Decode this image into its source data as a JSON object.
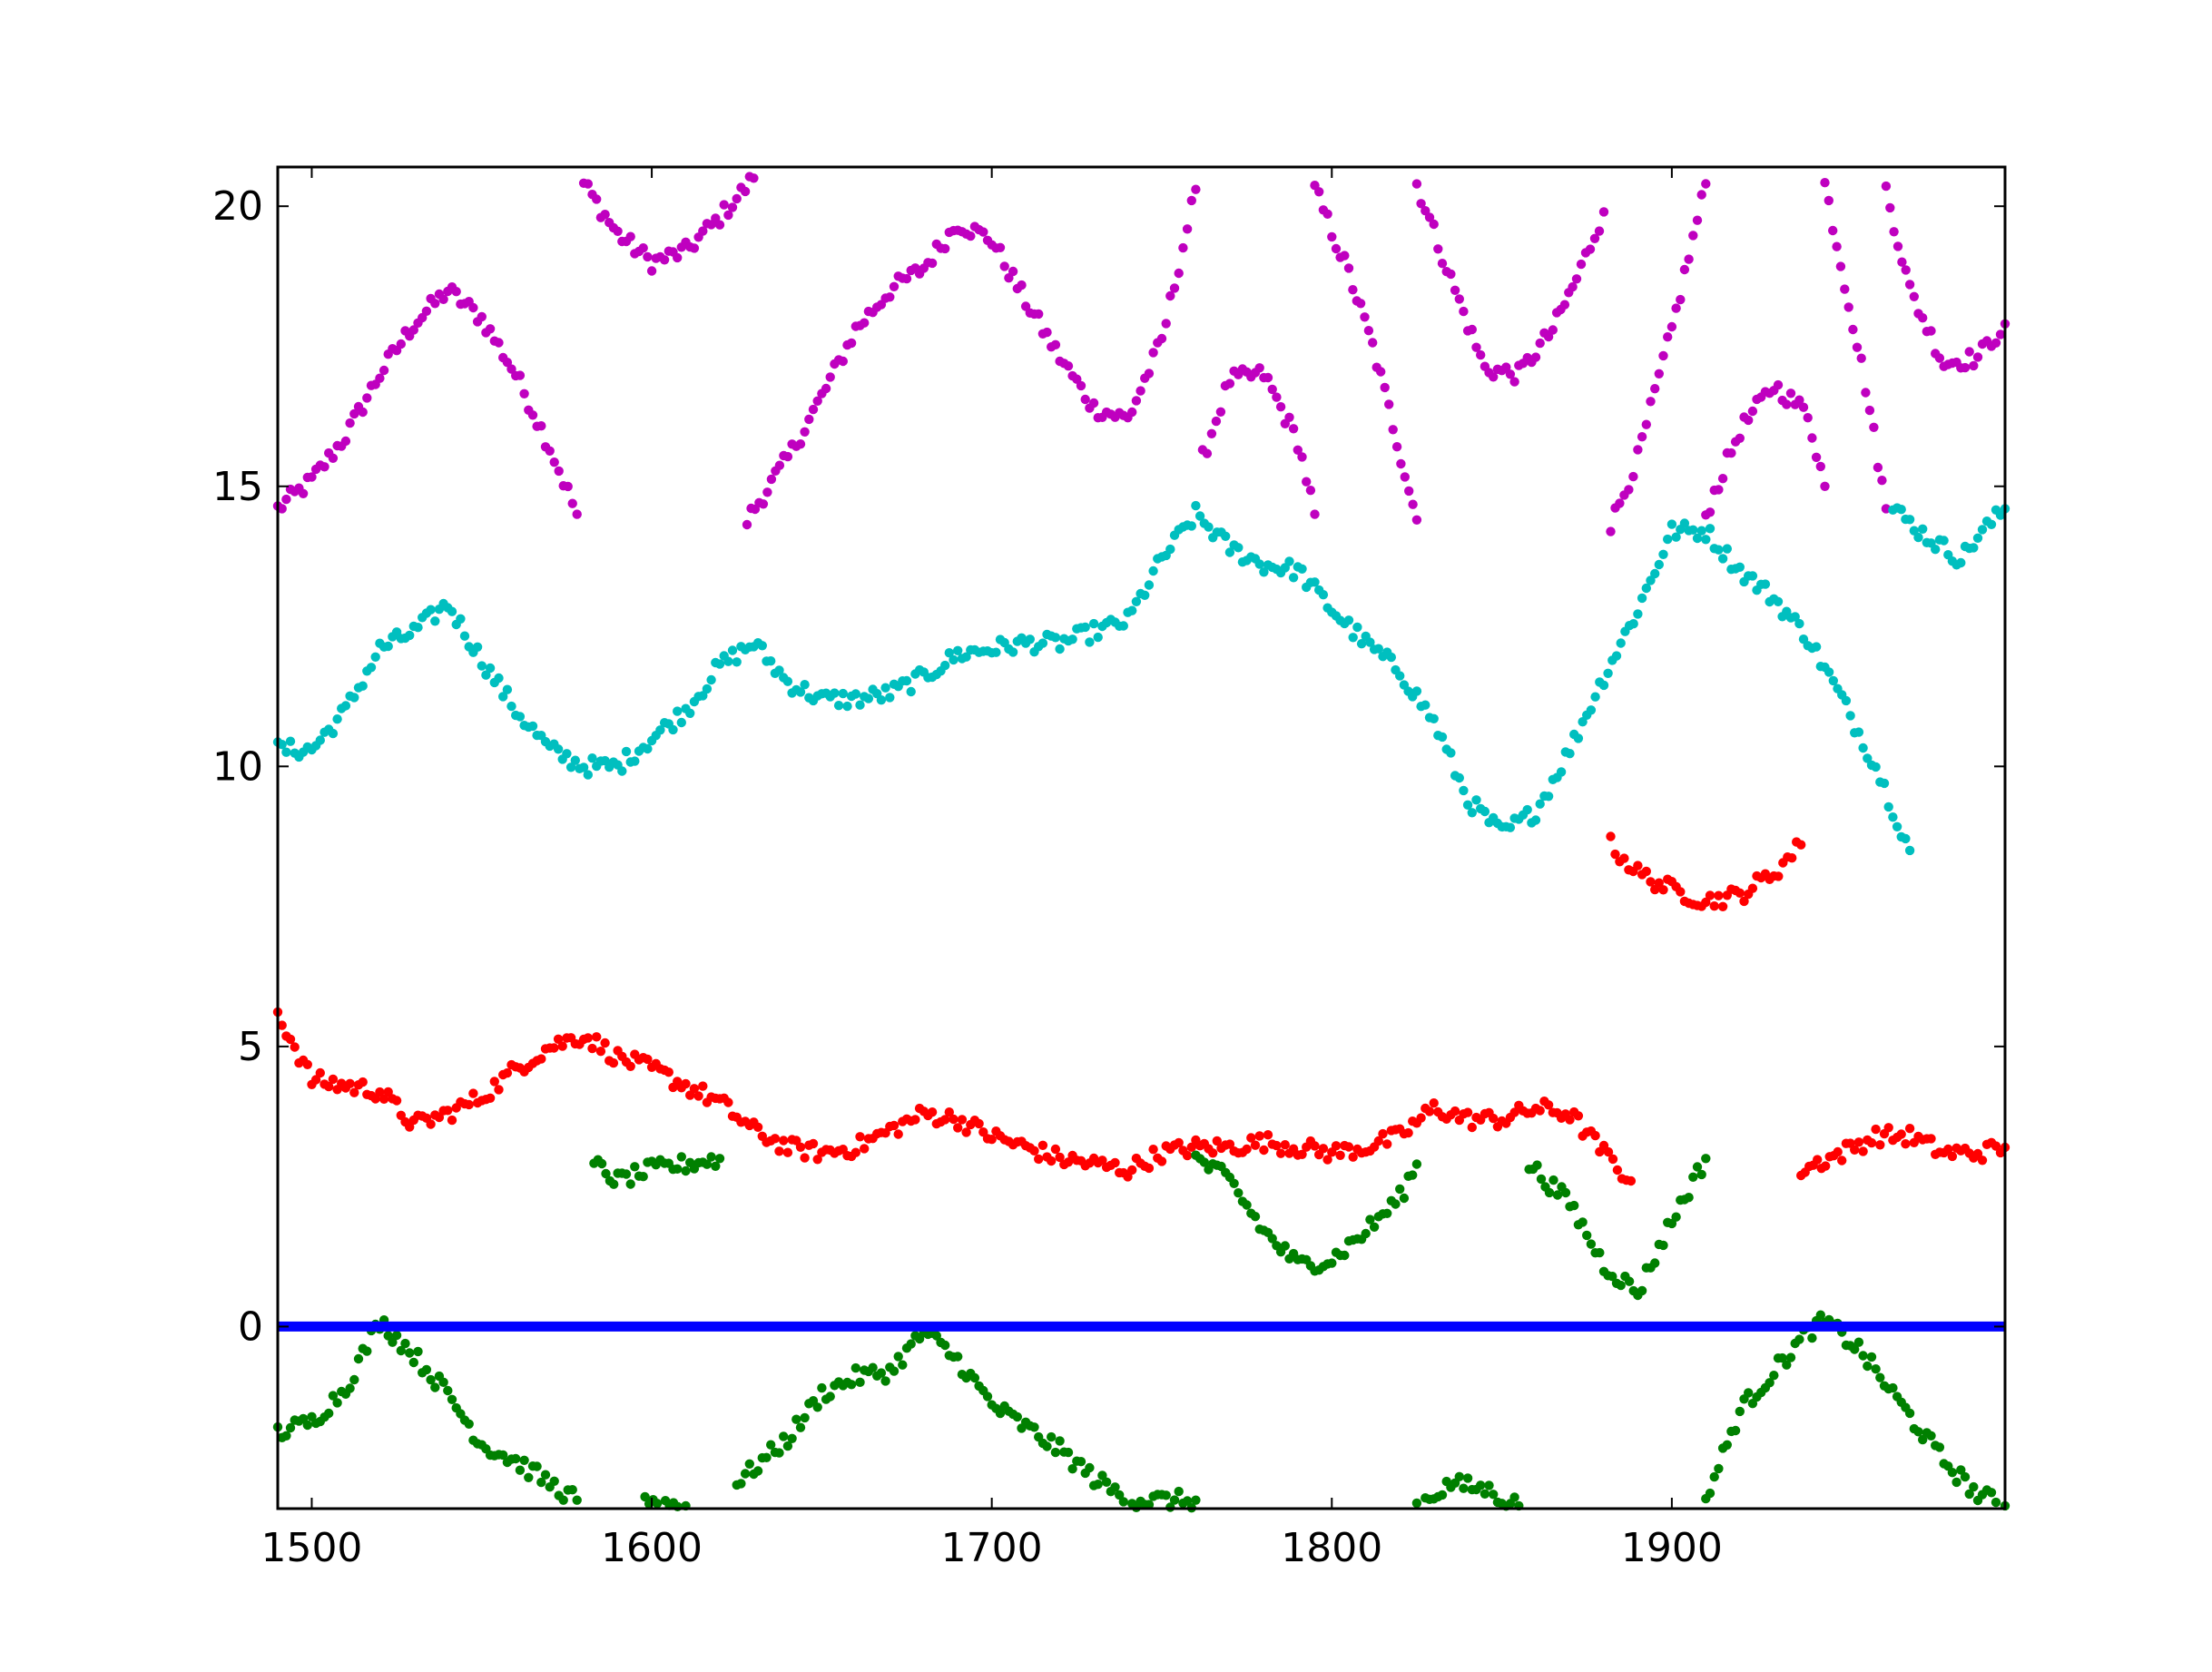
{
  "chart_data": {
    "type": "scatter",
    "title": "",
    "xlabel": "",
    "ylabel": "",
    "xlim": [
      1490,
      1998
    ],
    "ylim": [
      -3.25,
      20.7
    ],
    "grid": false,
    "legend": "none",
    "x_ticks": [
      1500,
      1600,
      1700,
      1800,
      1900
    ],
    "x_tick_labels": [
      "1500",
      "1600",
      "1700",
      "1800",
      "1900"
    ],
    "y_ticks": [
      0,
      5,
      10,
      15,
      20
    ],
    "y_tick_labels": [
      "0",
      "5",
      "10",
      "15",
      "20"
    ],
    "colors": {
      "magenta": "#bf00bf",
      "cyan": "#00bfbf",
      "red": "#ff0000",
      "green": "#008000",
      "blue": "#0000ff"
    },
    "hline": {
      "y": 0,
      "color": "#0000ff"
    },
    "series": [
      {
        "color": "#bf00bf",
        "segments": [
          [
            [
              1490,
              14.6
            ],
            [
              1500,
              15.1
            ],
            [
              1510,
              15.9
            ],
            [
              1520,
              17.0
            ],
            [
              1530,
              17.9
            ],
            [
              1540,
              18.5
            ],
            [
              1550,
              18.0
            ],
            [
              1560,
              17.0
            ],
            [
              1570,
              15.7
            ],
            [
              1578,
              14.5
            ]
          ],
          [
            [
              1580,
              20.4
            ],
            [
              1590,
              19.5
            ],
            [
              1600,
              19.0
            ],
            [
              1610,
              19.2
            ],
            [
              1620,
              19.8
            ],
            [
              1630,
              20.5
            ]
          ],
          [
            [
              1628,
              14.4
            ],
            [
              1640,
              15.5
            ],
            [
              1650,
              16.6
            ],
            [
              1660,
              17.8
            ],
            [
              1670,
              18.5
            ],
            [
              1680,
              18.9
            ],
            [
              1690,
              19.7
            ],
            [
              1700,
              19.4
            ],
            [
              1710,
              18.3
            ],
            [
              1720,
              17.3
            ],
            [
              1730,
              16.4
            ],
            [
              1740,
              16.2
            ],
            [
              1750,
              17.6
            ],
            [
              1760,
              20.3
            ]
          ],
          [
            [
              1762,
              15.5
            ],
            [
              1770,
              16.9
            ],
            [
              1780,
              17.0
            ],
            [
              1790,
              15.8
            ],
            [
              1795,
              14.5
            ]
          ],
          [
            [
              1795,
              20.3
            ],
            [
              1805,
              18.8
            ],
            [
              1812,
              17.5
            ],
            [
              1818,
              16.1
            ],
            [
              1825,
              14.4
            ]
          ],
          [
            [
              1825,
              20.4
            ],
            [
              1835,
              18.7
            ],
            [
              1845,
              17.1
            ],
            [
              1855,
              17.0
            ],
            [
              1865,
              17.8
            ],
            [
              1872,
              18.7
            ],
            [
              1880,
              19.9
            ]
          ],
          [
            [
              1882,
              14.3
            ],
            [
              1890,
              15.5
            ],
            [
              1900,
              17.8
            ],
            [
              1910,
              20.4
            ]
          ],
          [
            [
              1910,
              14.5
            ],
            [
              1920,
              16.0
            ],
            [
              1930,
              16.8
            ],
            [
              1940,
              16.3
            ],
            [
              1945,
              15.0
            ]
          ],
          [
            [
              1945,
              20.4
            ],
            [
              1952,
              18.3
            ],
            [
              1957,
              16.8
            ],
            [
              1963,
              14.6
            ]
          ],
          [
            [
              1963,
              20.3
            ],
            [
              1970,
              18.5
            ],
            [
              1980,
              17.2
            ],
            [
              1990,
              17.3
            ],
            [
              1998,
              17.9
            ]
          ]
        ]
      },
      {
        "color": "#00bfbf",
        "segments": [
          [
            [
              1490,
              10.3
            ],
            [
              1500,
              10.3
            ],
            [
              1510,
              11.0
            ],
            [
              1520,
              12.1
            ],
            [
              1530,
              12.4
            ],
            [
              1540,
              12.9
            ],
            [
              1550,
              11.9
            ],
            [
              1560,
              11.0
            ],
            [
              1570,
              10.3
            ],
            [
              1580,
              10.0
            ],
            [
              1590,
              10.0
            ],
            [
              1600,
              10.5
            ],
            [
              1610,
              11.0
            ],
            [
              1620,
              11.8
            ],
            [
              1630,
              12.2
            ],
            [
              1640,
              11.5
            ],
            [
              1650,
              11.2
            ],
            [
              1660,
              11.2
            ],
            [
              1670,
              11.3
            ],
            [
              1680,
              11.6
            ],
            [
              1690,
              12.0
            ],
            [
              1700,
              12.1
            ],
            [
              1710,
              12.2
            ],
            [
              1720,
              12.2
            ],
            [
              1730,
              12.4
            ],
            [
              1740,
              12.6
            ],
            [
              1750,
              13.7
            ],
            [
              1760,
              14.5
            ],
            [
              1770,
              13.9
            ],
            [
              1780,
              13.6
            ],
            [
              1790,
              13.5
            ],
            [
              1800,
              12.8
            ],
            [
              1810,
              12.2
            ],
            [
              1820,
              11.7
            ],
            [
              1830,
              10.8
            ],
            [
              1840,
              9.4
            ],
            [
              1850,
              8.8
            ],
            [
              1860,
              9.2
            ],
            [
              1870,
              10.3
            ],
            [
              1880,
              11.6
            ],
            [
              1890,
              12.8
            ],
            [
              1900,
              14.2
            ],
            [
              1910,
              14.2
            ],
            [
              1920,
              13.5
            ],
            [
              1930,
              13.0
            ],
            [
              1940,
              12.3
            ],
            [
              1950,
              11.2
            ],
            [
              1960,
              10.0
            ],
            [
              1970,
              8.5
            ]
          ],
          [
            [
              1965,
              14.6
            ],
            [
              1975,
              14.1
            ],
            [
              1985,
              13.7
            ],
            [
              1990,
              14.1
            ],
            [
              1998,
              14.6
            ]
          ]
        ]
      },
      {
        "color": "#ff0000",
        "segments": [
          [
            [
              1490,
              5.6
            ],
            [
              1500,
              4.4
            ],
            [
              1510,
              4.3
            ],
            [
              1520,
              4.2
            ],
            [
              1530,
              3.6
            ],
            [
              1540,
              3.8
            ],
            [
              1550,
              4.1
            ],
            [
              1560,
              4.6
            ],
            [
              1570,
              5.0
            ],
            [
              1580,
              5.2
            ],
            [
              1590,
              4.8
            ],
            [
              1600,
              4.6
            ],
            [
              1610,
              4.3
            ],
            [
              1620,
              4.0
            ],
            [
              1630,
              3.5
            ],
            [
              1640,
              3.2
            ],
            [
              1650,
              3.1
            ],
            [
              1660,
              3.2
            ],
            [
              1670,
              3.5
            ],
            [
              1680,
              3.8
            ],
            [
              1690,
              3.7
            ],
            [
              1700,
              3.4
            ],
            [
              1710,
              3.2
            ],
            [
              1720,
              3.0
            ],
            [
              1730,
              2.9
            ],
            [
              1740,
              2.8
            ],
            [
              1750,
              3.1
            ],
            [
              1760,
              3.2
            ],
            [
              1770,
              3.2
            ],
            [
              1780,
              3.3
            ],
            [
              1790,
              3.2
            ],
            [
              1800,
              3.1
            ],
            [
              1810,
              3.2
            ],
            [
              1820,
              3.4
            ],
            [
              1830,
              3.9
            ],
            [
              1840,
              3.7
            ],
            [
              1850,
              3.7
            ],
            [
              1860,
              3.9
            ],
            [
              1870,
              3.8
            ],
            [
              1880,
              3.1
            ],
            [
              1888,
              2.6
            ]
          ],
          [
            [
              1882,
              8.6
            ],
            [
              1890,
              8.1
            ],
            [
              1900,
              7.8
            ],
            [
              1910,
              7.6
            ],
            [
              1920,
              7.7
            ],
            [
              1930,
              8.1
            ],
            [
              1938,
              8.6
            ]
          ],
          [
            [
              1938,
              2.8
            ],
            [
              1950,
              3.1
            ],
            [
              1960,
              3.4
            ],
            [
              1970,
              3.4
            ],
            [
              1980,
              3.1
            ],
            [
              1990,
              3.1
            ],
            [
              1998,
              3.2
            ]
          ]
        ]
      },
      {
        "color": "#008000",
        "segments": [
          [
            [
              1490,
              -1.9
            ],
            [
              1500,
              -1.7
            ],
            [
              1510,
              -1.1
            ],
            [
              1520,
              0.1
            ],
            [
              1530,
              -0.5
            ],
            [
              1540,
              -1.2
            ],
            [
              1550,
              -2.1
            ],
            [
              1560,
              -2.4
            ],
            [
              1570,
              -2.8
            ],
            [
              1578,
              -3.1
            ]
          ],
          [
            [
              1583,
              2.9
            ],
            [
              1590,
              2.6
            ],
            [
              1600,
              2.8
            ],
            [
              1610,
              2.9
            ],
            [
              1620,
              3.0
            ]
          ],
          [
            [
              1598,
              -3.1
            ],
            [
              1610,
              -3.2
            ]
          ],
          [
            [
              1625,
              -2.8
            ],
            [
              1640,
              -2.0
            ],
            [
              1650,
              -1.2
            ],
            [
              1660,
              -0.9
            ],
            [
              1670,
              -0.8
            ],
            [
              1680,
              -0.1
            ],
            [
              1690,
              -0.6
            ],
            [
              1700,
              -1.4
            ],
            [
              1710,
              -1.8
            ],
            [
              1720,
              -2.2
            ],
            [
              1730,
              -2.7
            ],
            [
              1740,
              -3.1
            ],
            [
              1750,
              -3.1
            ],
            [
              1760,
              -3.1
            ]
          ],
          [
            [
              1760,
              3.0
            ],
            [
              1770,
              2.6
            ],
            [
              1780,
              1.7
            ],
            [
              1790,
              1.1
            ],
            [
              1800,
              1.2
            ],
            [
              1810,
              1.7
            ],
            [
              1820,
              2.3
            ],
            [
              1825,
              2.9
            ]
          ],
          [
            [
              1825,
              -3.2
            ],
            [
              1835,
              -2.8
            ],
            [
              1845,
              -2.9
            ],
            [
              1855,
              -3.2
            ]
          ],
          [
            [
              1858,
              2.9
            ],
            [
              1870,
              2.2
            ],
            [
              1880,
              1.1
            ],
            [
              1890,
              0.6
            ],
            [
              1900,
              1.9
            ],
            [
              1910,
              3.0
            ]
          ],
          [
            [
              1910,
              -3.1
            ],
            [
              1920,
              -1.5
            ],
            [
              1930,
              -0.8
            ],
            [
              1940,
              -0.1
            ],
            [
              1945,
              0.1
            ],
            [
              1955,
              -0.4
            ],
            [
              1960,
              -0.8
            ],
            [
              1970,
              -1.6
            ],
            [
              1980,
              -2.4
            ],
            [
              1990,
              -3.0
            ],
            [
              1998,
              -3.2
            ]
          ]
        ]
      }
    ]
  }
}
